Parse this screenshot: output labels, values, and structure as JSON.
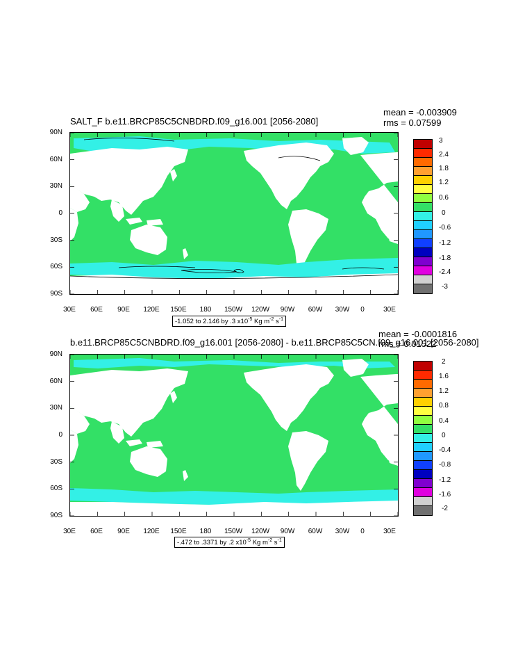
{
  "panels": [
    {
      "title": "SALT_F b.e11.BRCP85C5CNBDRD.f09_g16.001 [2056-2080]",
      "mean": "mean = -0.003909",
      "rms": "rms = 0.07599",
      "range": "-1.052 to 2.146 by .3 x10",
      "range_exp": "-5",
      "range_units": " Kg m",
      "range_units_exp": "-2",
      "range_s": " s",
      "range_s_exp": "-1",
      "colorbar_labels": [
        "3",
        "2.4",
        "1.8",
        "1.2",
        "0.6",
        "0",
        "-0.6",
        "-1.2",
        "-1.8",
        "-2.4",
        "-3"
      ]
    },
    {
      "title": "b.e11.BRCP85C5CNBDRD.f09_g16.001 [2056-2080] - b.e11.BRCP85C5CN.f09_g16.001 [2056-2080]",
      "mean": "mean = -0.0001816",
      "rms": "rms = 0.01522",
      "range": "-.472 to .3371 by .2 x10",
      "range_exp": "-5",
      "range_units": " Kg m",
      "range_units_exp": "-2",
      "range_s": " s",
      "range_s_exp": "-1",
      "colorbar_labels": [
        "2",
        "1.6",
        "1.2",
        "0.8",
        "0.4",
        "0",
        "-0.4",
        "-0.8",
        "-1.2",
        "-1.6",
        "-2"
      ]
    }
  ],
  "lat_labels": [
    "90N",
    "60N",
    "30N",
    "0",
    "30S",
    "60S",
    "90S"
  ],
  "lon_labels": [
    "30E",
    "60E",
    "90E",
    "120E",
    "150E",
    "180",
    "150W",
    "120W",
    "90W",
    "60W",
    "30W",
    "0",
    "30E"
  ],
  "colors": {
    "ocean_main": "#33e066",
    "ocean_neg": "#33f0e6",
    "land": "#ffffff",
    "colorbar": [
      "#c00000",
      "#ff2a00",
      "#ff6a00",
      "#ffa030",
      "#ffd000",
      "#ffff40",
      "#90ff40",
      "#33e066",
      "#33f0e6",
      "#20d0ff",
      "#2098ff",
      "#1040ff",
      "#0000c0",
      "#8000d0",
      "#e000e0",
      "#d0d0d0",
      "#707070"
    ]
  }
}
